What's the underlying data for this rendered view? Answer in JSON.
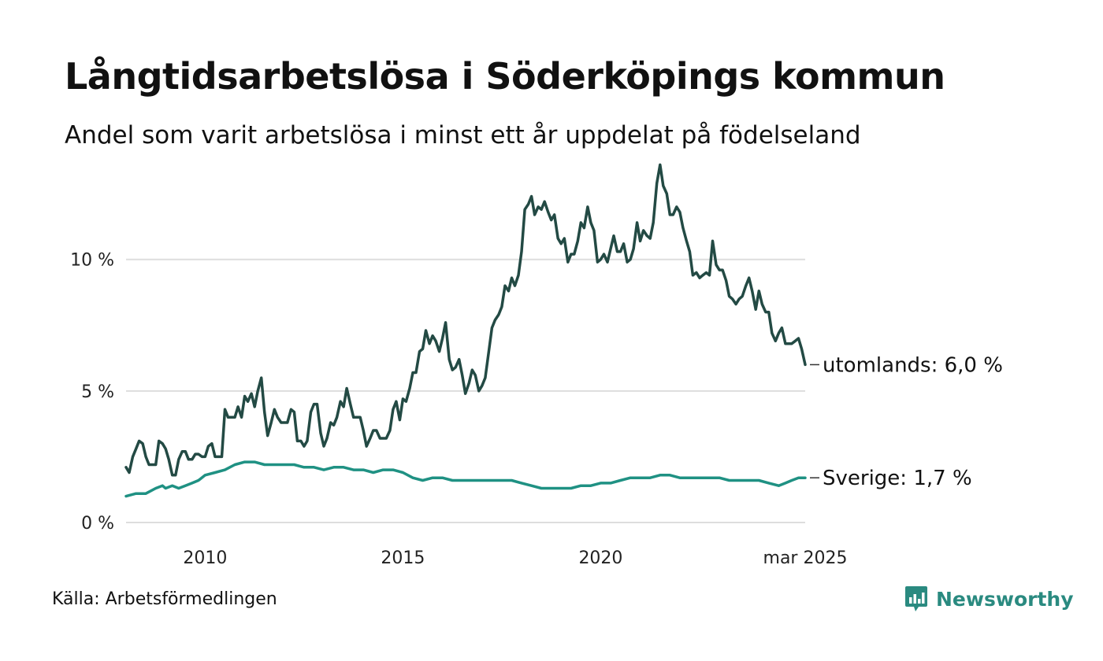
{
  "title": "Långtidsarbetslösa i Söderköpings kommun",
  "subtitle": "Andel som varit arbetslösa i minst ett år uppdelat på födelseland",
  "source": "Källa: Arbetsförmedlingen",
  "brand": {
    "name": "Newsworthy",
    "icon": "newsworthy-logo-icon",
    "color": "#2a8a80"
  },
  "chart_data": {
    "type": "line",
    "title": "Långtidsarbetslösa i Söderköpings kommun",
    "subtitle": "Andel som varit arbetslösa i minst ett år uppdelat på födelseland",
    "xlabel": "",
    "ylabel": "",
    "x_range": [
      2008.0,
      2025.17
    ],
    "ylim": [
      0,
      14
    ],
    "grid": true,
    "legend": "none",
    "x_ticks": [
      {
        "x": 2010,
        "label": "2010"
      },
      {
        "x": 2015,
        "label": "2015"
      },
      {
        "x": 2020,
        "label": "2020"
      },
      {
        "x": 2025.17,
        "label": "mar 2025"
      }
    ],
    "y_ticks": [
      {
        "y": 0,
        "label": "0 %"
      },
      {
        "y": 5,
        "label": "5 %"
      },
      {
        "y": 10,
        "label": "10 %"
      }
    ],
    "series": [
      {
        "name": "utomlands",
        "end_label": "utomlands: 6,0 %",
        "color": "#234a44",
        "points": [
          [
            2008.0,
            2.1
          ],
          [
            2008.08,
            1.9
          ],
          [
            2008.17,
            2.5
          ],
          [
            2008.25,
            2.8
          ],
          [
            2008.33,
            3.1
          ],
          [
            2008.42,
            3.0
          ],
          [
            2008.5,
            2.5
          ],
          [
            2008.58,
            2.2
          ],
          [
            2008.67,
            2.2
          ],
          [
            2008.75,
            2.2
          ],
          [
            2008.83,
            3.1
          ],
          [
            2008.92,
            3.0
          ],
          [
            2009.0,
            2.8
          ],
          [
            2009.08,
            2.4
          ],
          [
            2009.17,
            1.8
          ],
          [
            2009.25,
            1.8
          ],
          [
            2009.33,
            2.4
          ],
          [
            2009.42,
            2.7
          ],
          [
            2009.5,
            2.7
          ],
          [
            2009.58,
            2.4
          ],
          [
            2009.67,
            2.4
          ],
          [
            2009.75,
            2.6
          ],
          [
            2009.83,
            2.6
          ],
          [
            2009.92,
            2.5
          ],
          [
            2010.0,
            2.5
          ],
          [
            2010.08,
            2.9
          ],
          [
            2010.17,
            3.0
          ],
          [
            2010.25,
            2.5
          ],
          [
            2010.33,
            2.5
          ],
          [
            2010.42,
            2.5
          ],
          [
            2010.5,
            4.3
          ],
          [
            2010.58,
            4.0
          ],
          [
            2010.67,
            4.0
          ],
          [
            2010.75,
            4.0
          ],
          [
            2010.83,
            4.4
          ],
          [
            2010.92,
            4.0
          ],
          [
            2011.0,
            4.8
          ],
          [
            2011.08,
            4.6
          ],
          [
            2011.17,
            4.9
          ],
          [
            2011.25,
            4.4
          ],
          [
            2011.33,
            5.0
          ],
          [
            2011.42,
            5.5
          ],
          [
            2011.5,
            4.2
          ],
          [
            2011.58,
            3.3
          ],
          [
            2011.67,
            3.8
          ],
          [
            2011.75,
            4.3
          ],
          [
            2011.83,
            4.0
          ],
          [
            2011.92,
            3.8
          ],
          [
            2012.0,
            3.8
          ],
          [
            2012.08,
            3.8
          ],
          [
            2012.17,
            4.3
          ],
          [
            2012.25,
            4.2
          ],
          [
            2012.33,
            3.1
          ],
          [
            2012.42,
            3.1
          ],
          [
            2012.5,
            2.9
          ],
          [
            2012.58,
            3.1
          ],
          [
            2012.67,
            4.2
          ],
          [
            2012.75,
            4.5
          ],
          [
            2012.83,
            4.5
          ],
          [
            2012.92,
            3.4
          ],
          [
            2013.0,
            2.9
          ],
          [
            2013.08,
            3.2
          ],
          [
            2013.17,
            3.8
          ],
          [
            2013.25,
            3.7
          ],
          [
            2013.33,
            4.0
          ],
          [
            2013.42,
            4.6
          ],
          [
            2013.5,
            4.4
          ],
          [
            2013.58,
            5.1
          ],
          [
            2013.67,
            4.5
          ],
          [
            2013.75,
            4.0
          ],
          [
            2013.83,
            4.0
          ],
          [
            2013.92,
            4.0
          ],
          [
            2014.0,
            3.5
          ],
          [
            2014.08,
            2.9
          ],
          [
            2014.17,
            3.2
          ],
          [
            2014.25,
            3.5
          ],
          [
            2014.33,
            3.5
          ],
          [
            2014.42,
            3.2
          ],
          [
            2014.5,
            3.2
          ],
          [
            2014.58,
            3.2
          ],
          [
            2014.67,
            3.5
          ],
          [
            2014.75,
            4.3
          ],
          [
            2014.83,
            4.6
          ],
          [
            2014.92,
            3.9
          ],
          [
            2015.0,
            4.7
          ],
          [
            2015.08,
            4.6
          ],
          [
            2015.17,
            5.1
          ],
          [
            2015.25,
            5.7
          ],
          [
            2015.33,
            5.7
          ],
          [
            2015.42,
            6.5
          ],
          [
            2015.5,
            6.6
          ],
          [
            2015.58,
            7.3
          ],
          [
            2015.67,
            6.8
          ],
          [
            2015.75,
            7.1
          ],
          [
            2015.83,
            6.9
          ],
          [
            2015.92,
            6.5
          ],
          [
            2016.0,
            7.0
          ],
          [
            2016.08,
            7.6
          ],
          [
            2016.17,
            6.2
          ],
          [
            2016.25,
            5.8
          ],
          [
            2016.33,
            5.9
          ],
          [
            2016.42,
            6.2
          ],
          [
            2016.5,
            5.6
          ],
          [
            2016.58,
            4.9
          ],
          [
            2016.67,
            5.3
          ],
          [
            2016.75,
            5.8
          ],
          [
            2016.83,
            5.6
          ],
          [
            2016.92,
            5.0
          ],
          [
            2017.0,
            5.2
          ],
          [
            2017.08,
            5.5
          ],
          [
            2017.17,
            6.5
          ],
          [
            2017.25,
            7.4
          ],
          [
            2017.33,
            7.7
          ],
          [
            2017.42,
            7.9
          ],
          [
            2017.5,
            8.2
          ],
          [
            2017.58,
            9.0
          ],
          [
            2017.67,
            8.8
          ],
          [
            2017.75,
            9.3
          ],
          [
            2017.83,
            9.0
          ],
          [
            2017.92,
            9.4
          ],
          [
            2018.0,
            10.3
          ],
          [
            2018.08,
            11.9
          ],
          [
            2018.17,
            12.1
          ],
          [
            2018.25,
            12.4
          ],
          [
            2018.33,
            11.7
          ],
          [
            2018.42,
            12.0
          ],
          [
            2018.5,
            11.9
          ],
          [
            2018.58,
            12.2
          ],
          [
            2018.67,
            11.8
          ],
          [
            2018.75,
            11.5
          ],
          [
            2018.83,
            11.7
          ],
          [
            2018.92,
            10.8
          ],
          [
            2019.0,
            10.6
          ],
          [
            2019.08,
            10.8
          ],
          [
            2019.17,
            9.9
          ],
          [
            2019.25,
            10.2
          ],
          [
            2019.33,
            10.2
          ],
          [
            2019.42,
            10.7
          ],
          [
            2019.5,
            11.4
          ],
          [
            2019.58,
            11.2
          ],
          [
            2019.67,
            12.0
          ],
          [
            2019.75,
            11.4
          ],
          [
            2019.83,
            11.1
          ],
          [
            2019.92,
            9.9
          ],
          [
            2020.0,
            10.0
          ],
          [
            2020.08,
            10.2
          ],
          [
            2020.17,
            9.9
          ],
          [
            2020.25,
            10.4
          ],
          [
            2020.33,
            10.9
          ],
          [
            2020.42,
            10.3
          ],
          [
            2020.5,
            10.3
          ],
          [
            2020.58,
            10.6
          ],
          [
            2020.67,
            9.9
          ],
          [
            2020.75,
            10.0
          ],
          [
            2020.83,
            10.4
          ],
          [
            2020.92,
            11.4
          ],
          [
            2021.0,
            10.7
          ],
          [
            2021.08,
            11.1
          ],
          [
            2021.17,
            10.9
          ],
          [
            2021.25,
            10.8
          ],
          [
            2021.33,
            11.4
          ],
          [
            2021.42,
            12.9
          ],
          [
            2021.5,
            13.6
          ],
          [
            2021.58,
            12.8
          ],
          [
            2021.67,
            12.5
          ],
          [
            2021.75,
            11.7
          ],
          [
            2021.83,
            11.7
          ],
          [
            2021.92,
            12.0
          ],
          [
            2022.0,
            11.8
          ],
          [
            2022.08,
            11.2
          ],
          [
            2022.17,
            10.7
          ],
          [
            2022.25,
            10.3
          ],
          [
            2022.33,
            9.4
          ],
          [
            2022.42,
            9.5
          ],
          [
            2022.5,
            9.3
          ],
          [
            2022.58,
            9.4
          ],
          [
            2022.67,
            9.5
          ],
          [
            2022.75,
            9.4
          ],
          [
            2022.83,
            10.7
          ],
          [
            2022.92,
            9.8
          ],
          [
            2023.0,
            9.6
          ],
          [
            2023.08,
            9.6
          ],
          [
            2023.17,
            9.2
          ],
          [
            2023.25,
            8.6
          ],
          [
            2023.33,
            8.5
          ],
          [
            2023.42,
            8.3
          ],
          [
            2023.5,
            8.5
          ],
          [
            2023.58,
            8.6
          ],
          [
            2023.67,
            9.0
          ],
          [
            2023.75,
            9.3
          ],
          [
            2023.83,
            8.8
          ],
          [
            2023.92,
            8.1
          ],
          [
            2024.0,
            8.8
          ],
          [
            2024.08,
            8.3
          ],
          [
            2024.17,
            8.0
          ],
          [
            2024.25,
            8.0
          ],
          [
            2024.33,
            7.2
          ],
          [
            2024.42,
            6.9
          ],
          [
            2024.5,
            7.2
          ],
          [
            2024.58,
            7.4
          ],
          [
            2024.67,
            6.8
          ],
          [
            2024.75,
            6.8
          ],
          [
            2024.83,
            6.8
          ],
          [
            2024.92,
            6.9
          ],
          [
            2025.0,
            7.0
          ],
          [
            2025.08,
            6.6
          ],
          [
            2025.17,
            6.0
          ]
        ]
      },
      {
        "name": "Sverige",
        "end_label": "Sverige: 1,7 %",
        "color": "#1f9183",
        "points": [
          [
            2008.0,
            1.0
          ],
          [
            2008.25,
            1.1
          ],
          [
            2008.5,
            1.1
          ],
          [
            2008.75,
            1.3
          ],
          [
            2008.92,
            1.4
          ],
          [
            2009.0,
            1.3
          ],
          [
            2009.17,
            1.4
          ],
          [
            2009.33,
            1.3
          ],
          [
            2009.5,
            1.4
          ],
          [
            2009.67,
            1.5
          ],
          [
            2009.83,
            1.6
          ],
          [
            2010.0,
            1.8
          ],
          [
            2010.25,
            1.9
          ],
          [
            2010.5,
            2.0
          ],
          [
            2010.75,
            2.2
          ],
          [
            2011.0,
            2.3
          ],
          [
            2011.25,
            2.3
          ],
          [
            2011.5,
            2.2
          ],
          [
            2011.75,
            2.2
          ],
          [
            2012.0,
            2.2
          ],
          [
            2012.25,
            2.2
          ],
          [
            2012.5,
            2.1
          ],
          [
            2012.75,
            2.1
          ],
          [
            2013.0,
            2.0
          ],
          [
            2013.25,
            2.1
          ],
          [
            2013.5,
            2.1
          ],
          [
            2013.75,
            2.0
          ],
          [
            2014.0,
            2.0
          ],
          [
            2014.25,
            1.9
          ],
          [
            2014.5,
            2.0
          ],
          [
            2014.75,
            2.0
          ],
          [
            2015.0,
            1.9
          ],
          [
            2015.25,
            1.7
          ],
          [
            2015.5,
            1.6
          ],
          [
            2015.75,
            1.7
          ],
          [
            2016.0,
            1.7
          ],
          [
            2016.25,
            1.6
          ],
          [
            2016.5,
            1.6
          ],
          [
            2016.75,
            1.6
          ],
          [
            2017.0,
            1.6
          ],
          [
            2017.25,
            1.6
          ],
          [
            2017.5,
            1.6
          ],
          [
            2017.75,
            1.6
          ],
          [
            2018.0,
            1.5
          ],
          [
            2018.25,
            1.4
          ],
          [
            2018.5,
            1.3
          ],
          [
            2018.75,
            1.3
          ],
          [
            2019.0,
            1.3
          ],
          [
            2019.25,
            1.3
          ],
          [
            2019.5,
            1.4
          ],
          [
            2019.75,
            1.4
          ],
          [
            2020.0,
            1.5
          ],
          [
            2020.25,
            1.5
          ],
          [
            2020.5,
            1.6
          ],
          [
            2020.75,
            1.7
          ],
          [
            2021.0,
            1.7
          ],
          [
            2021.25,
            1.7
          ],
          [
            2021.5,
            1.8
          ],
          [
            2021.75,
            1.8
          ],
          [
            2022.0,
            1.7
          ],
          [
            2022.25,
            1.7
          ],
          [
            2022.5,
            1.7
          ],
          [
            2022.75,
            1.7
          ],
          [
            2023.0,
            1.7
          ],
          [
            2023.25,
            1.6
          ],
          [
            2023.5,
            1.6
          ],
          [
            2023.75,
            1.6
          ],
          [
            2024.0,
            1.6
          ],
          [
            2024.25,
            1.5
          ],
          [
            2024.5,
            1.4
          ],
          [
            2024.67,
            1.5
          ],
          [
            2024.83,
            1.6
          ],
          [
            2025.0,
            1.7
          ],
          [
            2025.17,
            1.7
          ]
        ]
      }
    ]
  }
}
